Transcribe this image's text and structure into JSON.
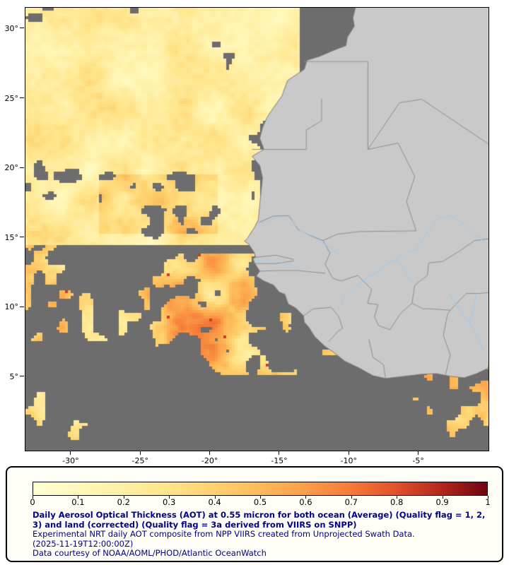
{
  "map": {
    "extent": {
      "lon_min": -33.3,
      "lon_max": 0.0,
      "lat_min": -0.28,
      "lat_max": 31.52
    },
    "colors": {
      "ocean": "#6d6d6d",
      "land": "#c9c9c9",
      "coast": "#7d7d7d",
      "border": "#8f8f8f",
      "river": "#a8cbe8",
      "frame": "#000000"
    },
    "lat_ticks": [
      {
        "label": "30°",
        "value": 30
      },
      {
        "label": "25°",
        "value": 25
      },
      {
        "label": "20°",
        "value": 20
      },
      {
        "label": "15°",
        "value": 15
      },
      {
        "label": "10°",
        "value": 10
      },
      {
        "label": "5°",
        "value": 5
      }
    ],
    "lon_ticks": [
      {
        "label": "-30°",
        "value": -30
      },
      {
        "label": "-25°",
        "value": -25
      },
      {
        "label": "-20°",
        "value": -20
      },
      {
        "label": "-15°",
        "value": -15
      },
      {
        "label": "-10°",
        "value": -10
      },
      {
        "label": "-5°",
        "value": -5
      }
    ],
    "coastline": [
      [
        -9.55,
        31.6
      ],
      [
        -9.75,
        30.8
      ],
      [
        -9.65,
        30.2
      ],
      [
        -10.15,
        29.4
      ],
      [
        -10.25,
        28.8
      ],
      [
        -11.05,
        28.5
      ],
      [
        -12.1,
        28.05
      ],
      [
        -13.05,
        27.75
      ],
      [
        -13.25,
        27.1
      ],
      [
        -14.45,
        26.3
      ],
      [
        -14.85,
        25.2
      ],
      [
        -15.7,
        24.0
      ],
      [
        -15.95,
        23.6
      ],
      [
        -16.25,
        22.9
      ],
      [
        -16.45,
        22.15
      ],
      [
        -16.15,
        21.35
      ],
      [
        -17.0,
        20.85
      ],
      [
        -16.45,
        20.2
      ],
      [
        -16.25,
        19.3
      ],
      [
        -16.4,
        17.9
      ],
      [
        -16.55,
        16.3
      ],
      [
        -16.8,
        15.8
      ],
      [
        -17.35,
        14.95
      ],
      [
        -17.55,
        14.75
      ],
      [
        -17.25,
        14.55
      ],
      [
        -16.85,
        13.95
      ],
      [
        -16.75,
        13.6
      ],
      [
        -16.95,
        13.5
      ],
      [
        -16.8,
        13.15
      ],
      [
        -16.45,
        12.6
      ],
      [
        -16.7,
        12.25
      ],
      [
        -16.15,
        11.9
      ],
      [
        -15.45,
        11.6
      ],
      [
        -15.05,
        11.1
      ],
      [
        -14.65,
        10.95
      ],
      [
        -14.4,
        10.25
      ],
      [
        -13.85,
        9.95
      ],
      [
        -13.3,
        9.4
      ],
      [
        -13.25,
        8.95
      ],
      [
        -12.9,
        8.55
      ],
      [
        -12.5,
        7.9
      ],
      [
        -11.75,
        7.2
      ],
      [
        -11.1,
        6.75
      ],
      [
        -10.35,
        6.15
      ],
      [
        -9.3,
        5.65
      ],
      [
        -8.3,
        5.1
      ],
      [
        -7.4,
        4.9
      ],
      [
        -6.1,
        5.05
      ],
      [
        -4.85,
        5.2
      ],
      [
        -3.75,
        5.25
      ],
      [
        -2.7,
        5.05
      ],
      [
        -1.75,
        4.95
      ],
      [
        -0.85,
        5.25
      ],
      [
        -0.1,
        5.6
      ],
      [
        0.4,
        6.1
      ],
      [
        0.4,
        31.6
      ]
    ],
    "borders": [
      [
        [
          -13.25,
          27.66
        ],
        [
          -8.67,
          27.66
        ],
        [
          -8.67,
          21.35
        ]
      ],
      [
        [
          -17.0,
          21.35
        ],
        [
          -13.1,
          21.35
        ],
        [
          -13.1,
          22.75
        ],
        [
          -12.0,
          23.4
        ],
        [
          -12.0,
          25.0
        ]
      ],
      [
        [
          -8.67,
          21.35
        ],
        [
          -6.4,
          24.7
        ],
        [
          -4.8,
          24.95
        ]
      ],
      [
        [
          -4.8,
          24.95
        ],
        [
          0.2,
          21.6
        ]
      ],
      [
        [
          -8.67,
          21.35
        ],
        [
          -6.5,
          21.8
        ],
        [
          -5.3,
          19.4
        ],
        [
          -5.9,
          17.6
        ],
        [
          -5.2,
          15.5
        ],
        [
          -9.3,
          15.45
        ],
        [
          -10.9,
          15.25
        ],
        [
          -11.9,
          14.8
        ],
        [
          -12.9,
          15.2
        ],
        [
          -13.7,
          15.6
        ],
        [
          -14.35,
          16.6
        ],
        [
          -15.5,
          16.55
        ],
        [
          -16.5,
          16.1
        ]
      ],
      [
        [
          -11.9,
          14.8
        ],
        [
          -11.4,
          13.9
        ],
        [
          -11.75,
          13.1
        ],
        [
          -11.2,
          12.1
        ],
        [
          -10.6,
          11.9
        ]
      ],
      [
        [
          -16.45,
          12.6
        ],
        [
          -15.2,
          12.65
        ],
        [
          -13.7,
          12.65
        ],
        [
          -11.75,
          12.45
        ]
      ],
      [
        [
          -16.75,
          13.6
        ],
        [
          -15.3,
          13.75
        ],
        [
          -14.0,
          13.45
        ]
      ],
      [
        [
          -16.8,
          13.15
        ],
        [
          -15.3,
          13.15
        ],
        [
          -14.0,
          13.35
        ]
      ],
      [
        [
          -10.6,
          11.9
        ],
        [
          -9.4,
          12.3
        ],
        [
          -8.4,
          11.3
        ],
        [
          -8.7,
          10.3
        ],
        [
          -7.95,
          10.2
        ],
        [
          -8.2,
          9.3
        ],
        [
          -7.9,
          8.7
        ],
        [
          -7.1,
          8.4
        ]
      ],
      [
        [
          -13.3,
          9.4
        ],
        [
          -12.6,
          9.9
        ],
        [
          -11.3,
          10.0
        ],
        [
          -10.75,
          9.3
        ],
        [
          -10.5,
          8.5
        ]
      ],
      [
        [
          -11.5,
          7.55
        ],
        [
          -10.8,
          8.3
        ],
        [
          -10.5,
          8.5
        ]
      ],
      [
        [
          -8.6,
          7.7
        ],
        [
          -8.3,
          6.4
        ],
        [
          -7.55,
          5.9
        ],
        [
          -7.4,
          4.9
        ]
      ],
      [
        [
          -3.1,
          5.15
        ],
        [
          -2.75,
          6.6
        ],
        [
          -3.25,
          8.0
        ],
        [
          -2.95,
          9.5
        ],
        [
          -2.75,
          9.8
        ]
      ],
      [
        [
          -7.1,
          8.4
        ],
        [
          -6.3,
          9.6
        ],
        [
          -5.5,
          10.3
        ],
        [
          -4.7,
          9.9
        ],
        [
          -4.2,
          9.9
        ],
        [
          -2.75,
          9.8
        ]
      ],
      [
        [
          -5.5,
          10.3
        ],
        [
          -5.3,
          11.6
        ],
        [
          -4.4,
          12.3
        ],
        [
          -4.3,
          13.2
        ],
        [
          -3.3,
          13.3
        ],
        [
          -2.0,
          14.1
        ],
        [
          -1.0,
          14.8
        ],
        [
          0.2,
          14.95
        ]
      ],
      [
        [
          -2.75,
          9.8
        ],
        [
          -1.6,
          11.0
        ],
        [
          -0.6,
          11.0
        ],
        [
          0.2,
          11.1
        ]
      ],
      [
        [
          -0.05,
          5.6
        ],
        [
          0.3,
          7.0
        ]
      ]
    ],
    "rivers": [
      [
        [
          -16.5,
          15.95
        ],
        [
          -15.5,
          16.4
        ],
        [
          -14.4,
          16.5
        ],
        [
          -13.5,
          15.5
        ],
        [
          -12.6,
          15.0
        ],
        [
          -11.9,
          14.6
        ],
        [
          -11.1,
          14.1
        ],
        [
          -10.7,
          13.7
        ]
      ],
      [
        [
          -10.8,
          9.9
        ],
        [
          -10.3,
          10.9
        ],
        [
          -9.3,
          11.7
        ],
        [
          -8.1,
          12.5
        ],
        [
          -6.7,
          13.5
        ],
        [
          -5.2,
          14.2
        ],
        [
          -4.3,
          15.5
        ],
        [
          -3.6,
          16.4
        ],
        [
          -2.7,
          16.6
        ],
        [
          -1.8,
          16.0
        ],
        [
          -0.9,
          15.2
        ],
        [
          0.3,
          14.2
        ]
      ],
      [
        [
          -6.7,
          13.5
        ],
        [
          -6.0,
          12.5
        ],
        [
          -5.3,
          11.6
        ]
      ],
      [
        [
          -2.9,
          11.1
        ],
        [
          -2.2,
          10.0
        ],
        [
          -1.3,
          8.9
        ],
        [
          -0.8,
          7.9
        ],
        [
          -0.3,
          6.8
        ]
      ],
      [
        [
          -0.9,
          11.0
        ],
        [
          -1.1,
          9.8
        ],
        [
          -1.3,
          8.9
        ]
      ],
      [
        [
          -16.8,
          13.4
        ],
        [
          -15.4,
          13.35
        ],
        [
          -14.4,
          13.1
        ],
        [
          -13.5,
          12.8
        ]
      ]
    ],
    "aot_regions": [
      {
        "name": "coast-gap-north",
        "lon": [
          -13.6,
          1
        ],
        "lat": [
          20,
          32
        ],
        "cov": 0.1,
        "v": [
          0.12,
          0.3
        ]
      },
      {
        "name": "coast-gap-mid",
        "lon": [
          -16.4,
          1
        ],
        "lat": [
          13.8,
          20
        ],
        "cov": 0.12,
        "v": [
          0.15,
          0.4
        ]
      },
      {
        "name": "orange-band",
        "lon": [
          -28,
          -19.5
        ],
        "lat": [
          15.2,
          19.6
        ],
        "cov": 0.66,
        "v": [
          0.2,
          0.55
        ]
      },
      {
        "name": "north-field",
        "lon": [
          -34,
          -12
        ],
        "lat": [
          14.5,
          32
        ],
        "cov": 0.74,
        "v": [
          0.1,
          0.35
        ]
      },
      {
        "name": "west-mid",
        "lon": [
          -34,
          -26.5
        ],
        "lat": [
          7.5,
          14.5
        ],
        "cov": 0.28,
        "v": [
          0.18,
          0.55
        ],
        "red": true
      },
      {
        "name": "plume",
        "lon": [
          -26.5,
          -13.8
        ],
        "lat": [
          5.2,
          13.8
        ],
        "cov": 0.45,
        "v": [
          0.22,
          0.68
        ],
        "red": true
      },
      {
        "name": "coast-plume",
        "lon": [
          -13.8,
          -9
        ],
        "lat": [
          6.5,
          12
        ],
        "cov": 0.3,
        "v": [
          0.25,
          0.6
        ]
      },
      {
        "name": "south-west",
        "lon": [
          -34,
          -19
        ],
        "lat": [
          -1,
          7.2
        ],
        "cov": 0.22,
        "v": [
          0.12,
          0.45
        ]
      },
      {
        "name": "south-mid",
        "lon": [
          -19,
          -6.5
        ],
        "lat": [
          -1,
          6
        ],
        "cov": 0.12,
        "v": [
          0.15,
          0.4
        ]
      },
      {
        "name": "gulf-patch",
        "lon": [
          -6.5,
          1
        ],
        "lat": [
          -1,
          6.2
        ],
        "cov": 0.45,
        "v": [
          0.2,
          0.6
        ]
      }
    ]
  },
  "colorbar": {
    "stops": [
      [
        0,
        "#ffffd6"
      ],
      [
        0.1,
        "#fff8bb"
      ],
      [
        0.2,
        "#ffefa4"
      ],
      [
        0.3,
        "#ffe48a"
      ],
      [
        0.4,
        "#fed16e"
      ],
      [
        0.5,
        "#fdba59"
      ],
      [
        0.6,
        "#fb9e48"
      ],
      [
        0.7,
        "#f57a38"
      ],
      [
        0.8,
        "#e1512b"
      ],
      [
        0.9,
        "#b3261d"
      ],
      [
        1,
        "#6f0410"
      ]
    ],
    "tick_labels": [
      "0",
      "0.1",
      "0.2",
      "0.3",
      "0.4",
      "0.5",
      "0.6",
      "0.7",
      "0.8",
      "0.9",
      "1"
    ]
  },
  "caption": {
    "color": "#00008b",
    "bold": "Daily Aerosol Optical Thickness (AOT) at 0.55 micron for both ocean (Average) (Quality flag = 1, 2, 3) and land (corrected) (Quality flag = 3a derived from VIIRS on SNPP)",
    "line2": "Experimental NRT daily AOT composite from NPP VIIRS created from Unprojected Swath Data.",
    "line3": "(2025-11-19T12:00:00Z)",
    "line4": "Data courtesy of NOAA/AOML/PHOD/Atlantic OceanWatch"
  }
}
